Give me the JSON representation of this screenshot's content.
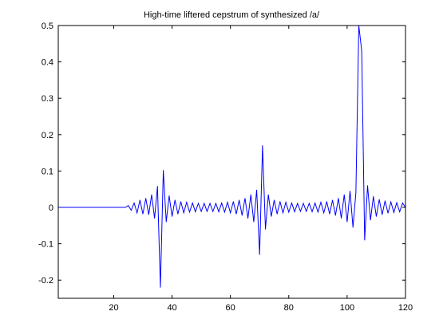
{
  "chart_data": {
    "type": "line",
    "title": "High-time liftered cepstrum of synthesized /a/",
    "xlabel": "",
    "ylabel": "",
    "xlim": [
      1,
      120
    ],
    "ylim": [
      -0.25,
      0.5
    ],
    "x_ticks": [
      20,
      40,
      60,
      80,
      100,
      120
    ],
    "y_ticks": [
      -0.2,
      -0.1,
      0,
      0.1,
      0.2,
      0.3,
      0.4,
      0.5
    ],
    "x_tick_labels": [
      "20",
      "40",
      "60",
      "80",
      "100",
      "120"
    ],
    "y_tick_labels": [
      "-0.2",
      "-0.1",
      "0",
      "0.1",
      "0.2",
      "0.3",
      "0.4",
      "0.5"
    ],
    "grid": false,
    "legend": "none",
    "line_color": "#0000ff",
    "series": [
      {
        "x": [
          1,
          2,
          3,
          4,
          5,
          6,
          7,
          8,
          9,
          10,
          11,
          12,
          13,
          14,
          15,
          16,
          17,
          18,
          19,
          20,
          21,
          22,
          23,
          24,
          25,
          26,
          27,
          28,
          29,
          30,
          31,
          32,
          33,
          34,
          35,
          36,
          37,
          38,
          39,
          40,
          41,
          42,
          43,
          44,
          45,
          46,
          47,
          48,
          49,
          50,
          51,
          52,
          53,
          54,
          55,
          56,
          57,
          58,
          59,
          60,
          61,
          62,
          63,
          64,
          65,
          66,
          67,
          68,
          69,
          70,
          71,
          72,
          73,
          74,
          75,
          76,
          77,
          78,
          79,
          80,
          81,
          82,
          83,
          84,
          85,
          86,
          87,
          88,
          89,
          90,
          91,
          92,
          93,
          94,
          95,
          96,
          97,
          98,
          99,
          100,
          101,
          102,
          103,
          104,
          105,
          106,
          107,
          108,
          109,
          110,
          111,
          112,
          113,
          114,
          115,
          116,
          117,
          118,
          119,
          120
        ],
        "values": [
          0,
          0,
          0,
          0,
          0,
          0,
          0,
          0,
          0,
          0,
          0,
          0,
          0,
          0,
          0,
          0,
          0,
          0,
          0,
          0,
          0,
          0,
          0,
          0,
          0.005,
          -0.008,
          0.012,
          -0.015,
          0.02,
          -0.018,
          0.025,
          -0.02,
          0.035,
          -0.03,
          0.058,
          -0.22,
          0.102,
          -0.04,
          0.032,
          -0.025,
          0.02,
          -0.018,
          0.016,
          -0.015,
          0.014,
          -0.013,
          0.012,
          -0.012,
          0.011,
          -0.011,
          0.011,
          -0.011,
          0.011,
          -0.011,
          0.011,
          -0.012,
          0.012,
          -0.013,
          0.014,
          -0.015,
          0.016,
          -0.018,
          0.02,
          -0.022,
          0.025,
          -0.03,
          0.035,
          -0.04,
          0.048,
          -0.13,
          0.17,
          -0.06,
          0.035,
          -0.025,
          0.02,
          -0.018,
          0.016,
          -0.015,
          0.014,
          -0.013,
          0.012,
          -0.012,
          0.011,
          -0.011,
          0.011,
          -0.011,
          0.011,
          -0.012,
          0.012,
          -0.013,
          0.014,
          -0.015,
          0.016,
          -0.018,
          0.02,
          -0.022,
          0.025,
          -0.03,
          0.035,
          -0.04,
          0.045,
          -0.055,
          0.04,
          0.5,
          0.43,
          -0.09,
          0.06,
          -0.035,
          0.03,
          -0.025,
          0.022,
          -0.02,
          0.018,
          -0.016,
          0.015,
          -0.014,
          0.013,
          -0.012,
          0.012,
          0.0
        ]
      }
    ]
  }
}
